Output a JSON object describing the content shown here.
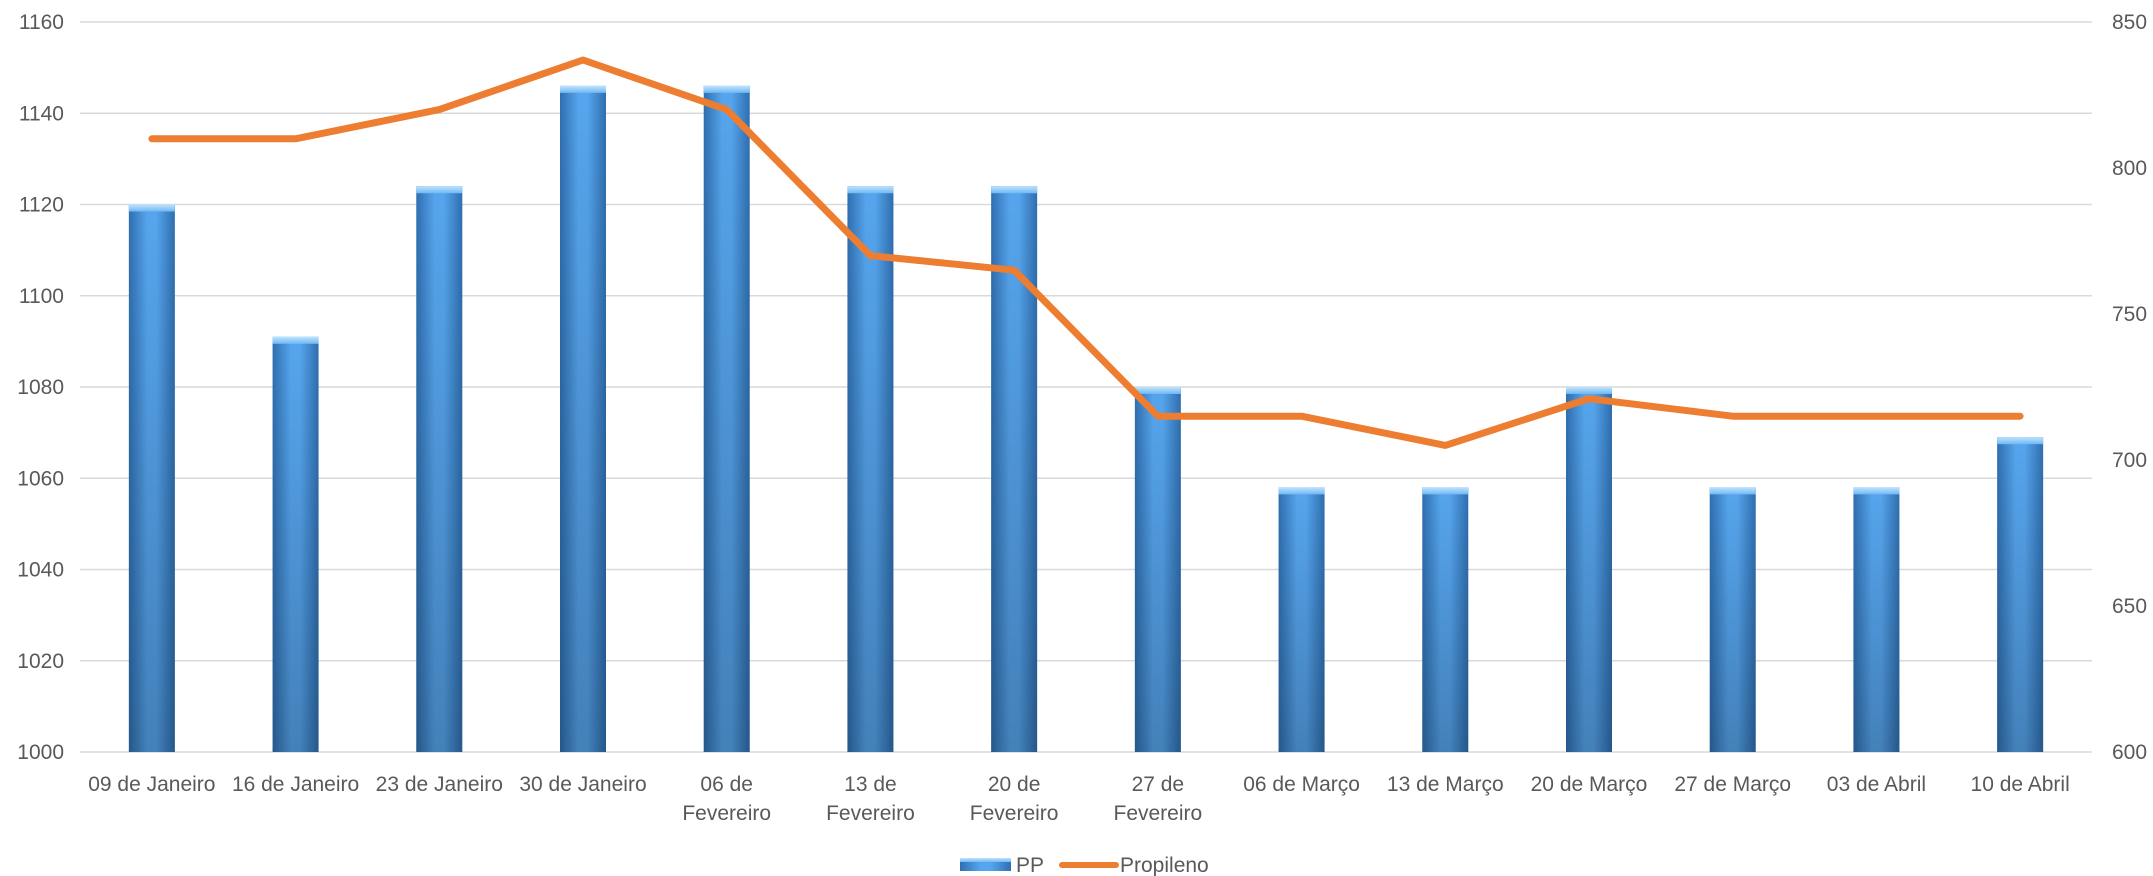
{
  "chart_data": {
    "type": "bar",
    "categories": [
      [
        "09 de Janeiro"
      ],
      [
        "16 de Janeiro"
      ],
      [
        "23 de Janeiro"
      ],
      [
        "30 de Janeiro"
      ],
      [
        "06 de",
        "Fevereiro"
      ],
      [
        "13 de",
        "Fevereiro"
      ],
      [
        "20 de",
        "Fevereiro"
      ],
      [
        "27 de",
        "Fevereiro"
      ],
      [
        "06 de Março"
      ],
      [
        "13 de Março"
      ],
      [
        "20 de Março"
      ],
      [
        "27 de Março"
      ],
      [
        "03 de Abril"
      ],
      [
        "10 de Abril"
      ]
    ],
    "series": [
      {
        "name": "PP",
        "type": "bar",
        "axis": "left",
        "color": "#3A87D4",
        "values": [
          1120,
          1091,
          1124,
          1146,
          1146,
          1124,
          1124,
          1080,
          1058,
          1058,
          1080,
          1058,
          1058,
          1069
        ]
      },
      {
        "name": "Propileno",
        "type": "line",
        "axis": "right",
        "color": "#ED7D31",
        "values": [
          810,
          810,
          820,
          837,
          820,
          770,
          765,
          715,
          715,
          705,
          721,
          715,
          715,
          715
        ]
      }
    ],
    "y_left": {
      "min": 1000,
      "max": 1160,
      "ticks": [
        1000,
        1020,
        1040,
        1060,
        1080,
        1100,
        1120,
        1140,
        1160
      ]
    },
    "y_right": {
      "min": 600,
      "max": 850,
      "ticks": [
        600,
        650,
        700,
        750,
        800,
        850
      ]
    },
    "grid": true,
    "legend": "bottom-center",
    "title": "",
    "xlabel": "",
    "ylabel": ""
  }
}
